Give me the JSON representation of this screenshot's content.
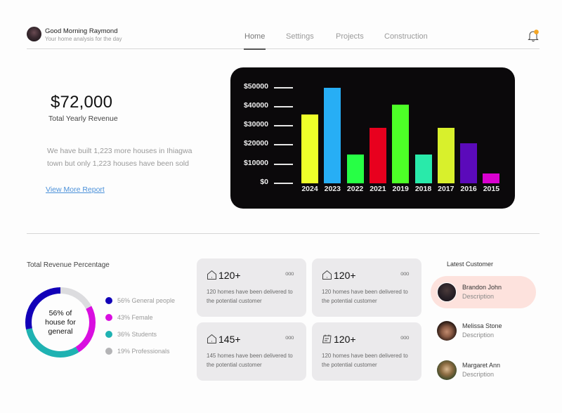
{
  "header": {
    "greeting": "Good Morning Raymond",
    "subtitle": "Your home analysis for the day",
    "nav": [
      {
        "label": "Home",
        "active": true
      },
      {
        "label": "Settings",
        "active": false
      },
      {
        "label": "Projects",
        "active": false
      },
      {
        "label": "Construction",
        "active": false
      }
    ],
    "notification_icon": "bell-icon",
    "notification_dot_color": "#f5a623"
  },
  "revenue": {
    "amount": "$72,000",
    "label": "Total Yearly Revenue",
    "description": "We have built 1,223 more houses in Ihiagwa town but only 1,223 houses have been sold",
    "link": "View More Report"
  },
  "chart_data": [
    {
      "type": "bar",
      "title": "",
      "xlabel": "",
      "ylabel": "",
      "categories": [
        "2024",
        "2023",
        "2022",
        "2021",
        "2019",
        "2018",
        "2017",
        "2016",
        "2015"
      ],
      "values": [
        36000,
        50000,
        15000,
        29000,
        41000,
        15000,
        29000,
        21000,
        5000
      ],
      "colors": [
        "#eeff2a",
        "#27aef5",
        "#27ff45",
        "#e8001e",
        "#4dfe27",
        "#29eaaa",
        "#d8f02c",
        "#5b0aba",
        "#d900d0"
      ],
      "yticks": [
        "$0",
        "$10000",
        "$20000",
        "$30000",
        "$40000",
        "$50000"
      ],
      "ylim": [
        0,
        50000
      ],
      "grid": false,
      "background": "#0b090b"
    },
    {
      "type": "pie",
      "title": "Total Revenue Percentage",
      "center_text": [
        "56% of",
        "house for",
        "general"
      ],
      "legend": [
        {
          "label": "56% General people",
          "value": 56,
          "color": "#1200b8"
        },
        {
          "label": "43% Female",
          "value": 43,
          "color": "#d90ee0"
        },
        {
          "label": "36% Students",
          "value": 36,
          "color": "#1fb2b2"
        },
        {
          "label": "19% Professionals",
          "value": 19,
          "color": "#b4b4b6"
        }
      ],
      "legend_position": "right"
    }
  ],
  "donut": {
    "title": "Total Revenue Percentage",
    "center": [
      "56% of",
      "house for",
      "general"
    ],
    "legend": [
      {
        "label": "56% General people",
        "color": "#1200b8"
      },
      {
        "label": "43% Female",
        "color": "#d90ee0"
      },
      {
        "label": "36% Students",
        "color": "#1fb2b2"
      },
      {
        "label": "19% Professionals",
        "color": "#b4b4b6"
      }
    ]
  },
  "cards": [
    {
      "icon": "house-icon",
      "value": "120+",
      "desc": "120 homes have been delivered to the potential customer",
      "menu": "ooo"
    },
    {
      "icon": "house-icon",
      "value": "120+",
      "desc": "120 homes have been delivered to the potential customer",
      "menu": "ooo"
    },
    {
      "icon": "house-icon",
      "value": "145+",
      "desc": "145 homes have been delivered to the potential customer",
      "menu": "ooo"
    },
    {
      "icon": "calendar-icon",
      "value": "120+",
      "desc": "120 homes have been delivered to the potential customer",
      "menu": "ooo"
    }
  ],
  "customers": {
    "title": "Latest Customer",
    "items": [
      {
        "name": "Brandon John",
        "desc": "Description",
        "active": true
      },
      {
        "name": "Melissa Stone",
        "desc": "Description",
        "active": false
      },
      {
        "name": "Margaret Ann",
        "desc": "Description",
        "active": false
      }
    ]
  }
}
